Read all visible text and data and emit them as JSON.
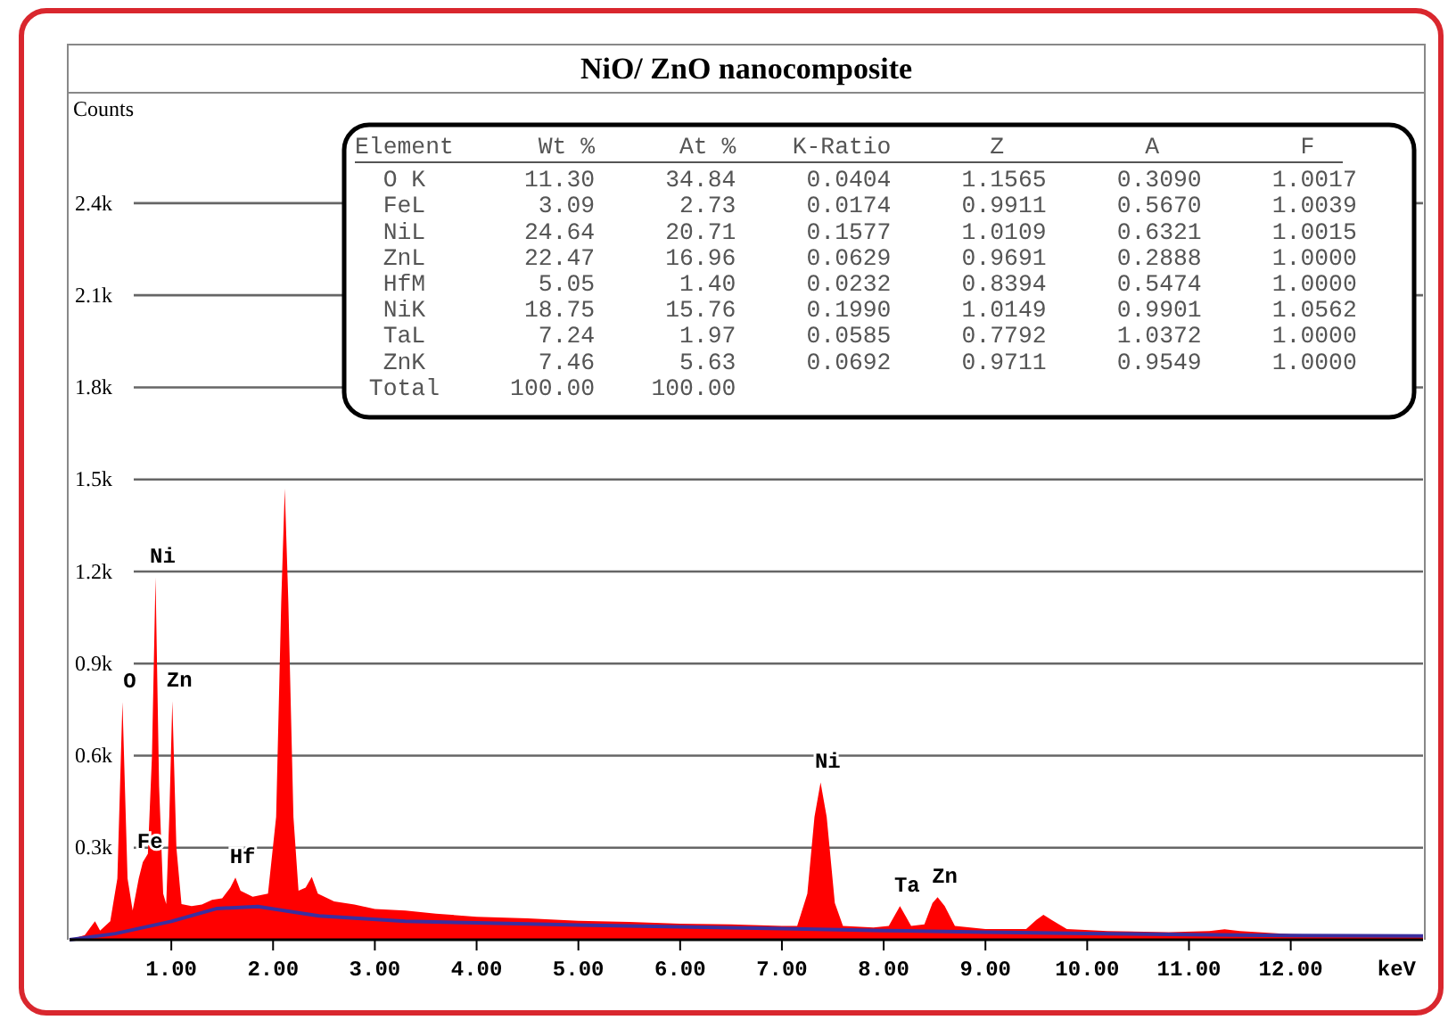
{
  "chart_data": {
    "type": "area",
    "title": "NiO/ ZnO nanocomposite",
    "xlabel": "keV",
    "ylabel": "Counts",
    "xlim": [
      0,
      13.3
    ],
    "ylim": [
      0,
      2760
    ],
    "grid": "y",
    "xticks": [
      {
        "value": 1,
        "label": "1.00"
      },
      {
        "value": 2,
        "label": "2.00"
      },
      {
        "value": 3,
        "label": "3.00"
      },
      {
        "value": 4,
        "label": "4.00"
      },
      {
        "value": 5,
        "label": "5.00"
      },
      {
        "value": 6,
        "label": "6.00"
      },
      {
        "value": 7,
        "label": "7.00"
      },
      {
        "value": 8,
        "label": "8.00"
      },
      {
        "value": 9,
        "label": "9.00"
      },
      {
        "value": 10,
        "label": "10.00"
      },
      {
        "value": 11,
        "label": "11.00"
      },
      {
        "value": 12,
        "label": "12.00"
      }
    ],
    "yticks": [
      {
        "value": 300,
        "label": "0.3k"
      },
      {
        "value": 600,
        "label": "0.6k"
      },
      {
        "value": 900,
        "label": "0.9k"
      },
      {
        "value": 1200,
        "label": "1.2k"
      },
      {
        "value": 1500,
        "label": "1.5k"
      },
      {
        "value": 1800,
        "label": "1.8k"
      },
      {
        "value": 2100,
        "label": "2.1k"
      },
      {
        "value": 2400,
        "label": "2.4k"
      }
    ],
    "series": [
      {
        "type": "area",
        "color": "#ff0000",
        "x": [
          0.05,
          0.15,
          0.25,
          0.3,
          0.4,
          0.47,
          0.52,
          0.57,
          0.62,
          0.68,
          0.72,
          0.77,
          0.81,
          0.845,
          0.88,
          0.92,
          0.95,
          0.98,
          1.01,
          1.05,
          1.1,
          1.2,
          1.3,
          1.4,
          1.5,
          1.58,
          1.63,
          1.68,
          1.8,
          1.95,
          2.03,
          2.08,
          2.115,
          2.15,
          2.2,
          2.25,
          2.32,
          2.38,
          2.44,
          2.6,
          2.8,
          3.0,
          3.3,
          3.6,
          4.0,
          4.5,
          5.0,
          5.5,
          6.0,
          6.5,
          7.0,
          7.15,
          7.25,
          7.32,
          7.38,
          7.44,
          7.52,
          7.6,
          7.9,
          8.05,
          8.16,
          8.27,
          8.4,
          8.48,
          8.53,
          8.6,
          8.7,
          9.0,
          9.4,
          9.5,
          9.57,
          9.65,
          9.8,
          10.2,
          10.8,
          11.2,
          11.35,
          11.5,
          12.0,
          12.5,
          13.0,
          13.3
        ],
        "values": [
          5,
          15,
          60,
          30,
          60,
          200,
          775,
          200,
          95,
          200,
          253,
          280,
          600,
          1181,
          500,
          150,
          116,
          400,
          778,
          300,
          116,
          110,
          115,
          130,
          135,
          170,
          203,
          160,
          140,
          150,
          400,
          1100,
          1470,
          1100,
          400,
          160,
          170,
          205,
          150,
          125,
          115,
          100,
          95,
          85,
          75,
          70,
          62,
          58,
          52,
          50,
          45,
          45,
          150,
          400,
          513,
          400,
          120,
          45,
          40,
          45,
          110,
          45,
          50,
          120,
          139,
          110,
          45,
          35,
          35,
          65,
          81,
          65,
          35,
          28,
          25,
          28,
          34,
          28,
          18,
          15,
          12,
          12
        ]
      },
      {
        "type": "line",
        "color": "#3a2fa0",
        "x": [
          0,
          0.45,
          1.0,
          1.45,
          1.85,
          2.45,
          3.3,
          4,
          5,
          6,
          7,
          8,
          9,
          10,
          11,
          12,
          13.3
        ],
        "values": [
          0,
          20,
          60,
          102,
          108,
          78,
          60,
          55,
          48,
          42,
          36,
          30,
          25,
          20,
          17,
          14,
          12
        ]
      }
    ],
    "annotations": [
      "Element      Wt %      At %    K-Ratio       Z          A          F",
      "  O K       11.30     34.84     0.0404     1.1565     0.3090     1.0017",
      "  FeL        3.09      2.73     0.0174     0.9911     0.5670     1.0039",
      "  NiL       24.64     20.71     0.1577     1.0109     0.6321     1.0015",
      "  ZnL       22.47     16.96     0.0629     0.9691     0.2888     1.0000",
      "  HfM        5.05      1.40     0.0232     0.8394     0.5474     1.0000",
      "  NiK       18.75     15.76     0.1990     1.0149     0.9901     1.0562",
      "  TaL        7.24      1.97     0.0585     0.7792     1.0372     1.0000",
      "  ZnK        7.46      5.63     0.0692     0.9711     0.9549     1.0000",
      " Total     100.00    100.00",
      {
        "text": "O",
        "x": 0.52,
        "y": 775
      },
      {
        "text": "Fe",
        "x": 0.72,
        "y": 253
      },
      {
        "text": "Ni",
        "x": 0.845,
        "y": 1181
      },
      {
        "text": "Zn",
        "x": 1.01,
        "y": 778
      },
      {
        "text": "Hf",
        "x": 1.63,
        "y": 203
      },
      {
        "text": "Ni",
        "x": 7.38,
        "y": 513
      },
      {
        "text": "Ta",
        "x": 8.16,
        "y": 110
      },
      {
        "text": "Zn",
        "x": 8.53,
        "y": 139
      }
    ]
  }
}
